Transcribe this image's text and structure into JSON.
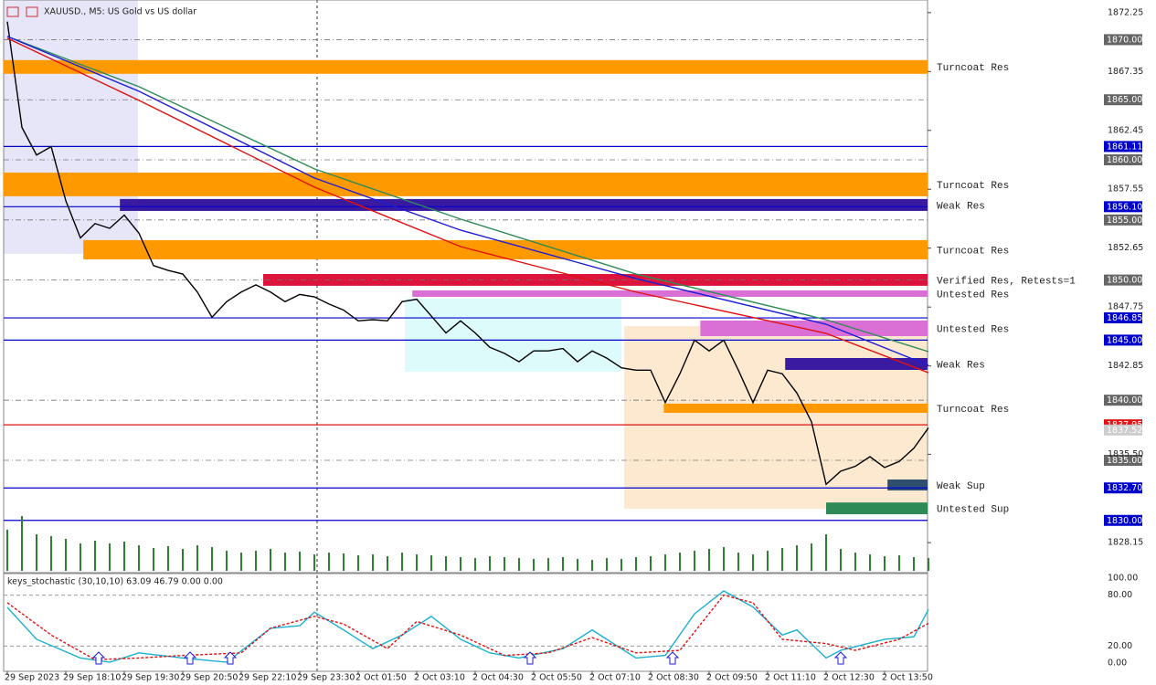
{
  "chart_data": [
    {
      "type": "line",
      "title": "XAUUSD., M5:  US Gold vs US dollar",
      "categories": [
        "29 Sep 2023",
        null,
        null,
        null,
        "29 Sep 18:10",
        null,
        null,
        null,
        "29 Sep 19:30",
        null,
        null,
        null,
        "29 Sep 20:50",
        null,
        null,
        null,
        "29 Sep 22:10",
        null,
        null,
        null,
        "29 Sep 23:30",
        null,
        null,
        null,
        "2 Oct 01:50",
        null,
        null,
        null,
        "2 Oct 03:10",
        null,
        null,
        null,
        "2 Oct 04:30",
        null,
        null,
        null,
        "2 Oct 05:50",
        null,
        null,
        null,
        "2 Oct 07:10",
        null,
        null,
        null,
        "2 Oct 08:30",
        null,
        null,
        null,
        "2 Oct 09:50",
        null,
        null,
        null,
        "2 Oct 11:10",
        null,
        null,
        null,
        "2 Oct 12:30",
        null,
        null,
        null,
        "2 Oct 13:50",
        null,
        null,
        null
      ],
      "series": [
        {
          "color": "#000000",
          "values": [
            1871.5,
            1862.7,
            1860.4,
            1861.1,
            1856.6,
            1853.5,
            1854.7,
            1854.3,
            1855.4,
            1853.9,
            1851.2,
            1850.8,
            1850.5,
            1849.0,
            1846.9,
            1848.2,
            1849.0,
            1849.6,
            1849.0,
            1848.2,
            1848.8,
            1848.6,
            1848.0,
            1847.5,
            1846.6,
            1846.7,
            1846.6,
            1848.2,
            1848.4,
            1847.0,
            1845.6,
            1846.6,
            1845.6,
            1844.4,
            1843.9,
            1843.2,
            1844.1,
            1844.1,
            1844.3,
            1843.2,
            1844.1,
            1843.5,
            1842.7,
            1842.5,
            1842.5,
            1839.8,
            1842.2,
            1845.0,
            1844.1,
            1845.0,
            1842.5,
            1839.8,
            1842.5,
            1842.2,
            1840.6,
            1838.2,
            1833.0,
            1834.1,
            1834.5,
            1835.3,
            1834.4,
            1834.9,
            1836.0,
            1837.7
          ]
        },
        {
          "color": "#2e8b57",
          "x": [
            0,
            9,
            21,
            31,
            43,
            56,
            63
          ],
          "values": [
            1870.27,
            1866.09,
            1859.25,
            1855.07,
            1850.5,
            1846.7,
            1844.04
          ]
        },
        {
          "color": "#1c1cd6",
          "x": [
            0,
            9,
            21,
            31,
            43,
            56,
            63
          ],
          "values": [
            1870.27,
            1865.71,
            1858.49,
            1854.15,
            1850.12,
            1846.32,
            1842.9
          ]
        },
        {
          "color": "#e01010",
          "x": [
            0,
            9,
            21,
            31,
            43,
            56,
            63
          ],
          "values": [
            1870.12,
            1864.95,
            1857.73,
            1852.78,
            1849.0,
            1845.56,
            1842.29
          ]
        }
      ],
      "ylim": [
        1825.65,
        1873.3
      ],
      "yticks": [
        1872.25,
        1867.35,
        1862.45,
        1857.55,
        1852.65,
        1847.75,
        1842.85,
        {
          "value": 1835.5,
          "label": "1835.50"
        },
        1828.15
      ],
      "levels": [
        {
          "value": 1870,
          "label": "1870.00",
          "color": "#777777",
          "dashed": true
        },
        {
          "value": 1865,
          "label": "1865.00",
          "color": "#777777",
          "dashed": true
        },
        {
          "value": 1861.11,
          "color": "#0000cc",
          "dashed": false
        },
        {
          "value": 1860,
          "label": "1860.00",
          "color": "#777777",
          "dashed": true
        },
        {
          "value": 1856.1,
          "label": "1856.10",
          "color": "#0000cc",
          "dashed": false
        },
        {
          "value": 1855,
          "label": "1855.00",
          "color": "#777777",
          "dashed": true
        },
        {
          "value": 1850,
          "label": "1850.00",
          "color": "#777777",
          "dashed": true
        },
        {
          "value": 1846.85,
          "color": "#0000cc",
          "dashed": false
        },
        {
          "value": 1845,
          "label": "1845.00",
          "color": "#0000cc",
          "dashed": false
        },
        {
          "value": 1840,
          "label": "1840.00",
          "color": "#777777",
          "dashed": true
        },
        {
          "value": 1837.95,
          "color": "#e01010",
          "dashed": false
        },
        {
          "value": 1835,
          "label": "1835.00",
          "color": "#777777",
          "dashed": true
        },
        {
          "value": 1832.7,
          "label": "1832.70",
          "color": "#0000cc",
          "dashed": false
        },
        {
          "value": 1830,
          "label": "1830.00",
          "color": "#0000cc",
          "dashed": false
        }
      ],
      "bid": 1837.52,
      "zones": [
        {
          "label": "Turncoat Res",
          "color": "#ff9900",
          "top": 1868.3,
          "bottom": 1867.16,
          "start": -0.25
        },
        {
          "label": "Turncoat Res",
          "color": "#ff9900",
          "top": 1858.94,
          "bottom": 1856.97,
          "start": -0.25
        },
        {
          "label": "Weak Res",
          "color": "#3a1aa0",
          "top": 1856.74,
          "bottom": 1855.75,
          "start": 7.7
        },
        {
          "label": "Turncoat Res",
          "color": "#ff9900",
          "top": 1853.32,
          "bottom": 1851.72,
          "start": 5.2
        },
        {
          "label": "Verified Res, Retests=1",
          "color": "#dc143c",
          "top": 1850.5,
          "bottom": 1849.52,
          "start": 17.5
        },
        {
          "label": "Untested Res",
          "color": "#da70d6",
          "top": 1849.14,
          "bottom": 1848.6,
          "start": 27.7
        },
        {
          "label": "Untested Res",
          "color": "#da70d6",
          "top": 1846.63,
          "bottom": 1845.33,
          "start": 47.4
        },
        {
          "label": "Weak Res",
          "color": "#3a1aa0",
          "top": 1843.51,
          "bottom": 1842.52,
          "start": 53.2
        },
        {
          "label": "Turncoat Res",
          "color": "#ff9900",
          "top": 1839.71,
          "bottom": 1838.95,
          "start": 44.9
        },
        {
          "label": "Weak Sup",
          "color": "#2f4f6f",
          "top": 1833.4,
          "bottom": 1832.49,
          "start": 60.2
        },
        {
          "label": "Untested Sup",
          "color": "#2e8b57",
          "top": 1831.49,
          "bottom": 1830.51,
          "start": 56
        }
      ]
    },
    {
      "type": "bar",
      "color": "#2e7d32",
      "values": [
        45,
        60,
        40,
        38,
        35,
        30,
        33,
        30,
        32,
        28,
        25,
        27,
        24,
        28,
        26,
        22,
        20,
        22,
        24,
        20,
        21,
        18,
        20,
        19,
        17,
        18,
        16,
        20,
        18,
        17,
        16,
        15,
        14,
        16,
        15,
        14,
        13,
        14,
        15,
        13,
        12,
        14,
        13,
        15,
        16,
        18,
        20,
        22,
        24,
        26,
        20,
        18,
        22,
        25,
        28,
        30,
        40,
        24,
        20,
        18,
        16,
        17,
        15,
        14
      ]
    },
    {
      "type": "line",
      "title": "keys_stochastic (30,10,10) 63.09 46.79 0.00 0.00",
      "ylim": [
        0,
        100
      ],
      "yticks": [
        {
          "value": 100,
          "label": "100.00"
        },
        {
          "value": 80,
          "label": "80.00"
        },
        {
          "value": 20,
          "label": "20.00"
        },
        {
          "value": 0,
          "label": "0.00"
        }
      ],
      "series": [
        {
          "color": "#1ab0d0",
          "dashed": false,
          "x": [
            0,
            2,
            5,
            7,
            9,
            12,
            15,
            18,
            20,
            21,
            23,
            25,
            27,
            29,
            31,
            33,
            35,
            38,
            40,
            43,
            45,
            47,
            49,
            51,
            53,
            54,
            56,
            57,
            60,
            62,
            63
          ],
          "values": [
            65.6,
            28,
            6,
            1,
            12,
            6,
            1,
            41,
            44,
            60,
            39,
            17,
            33,
            55,
            28,
            12,
            6,
            17,
            39,
            6,
            9,
            58,
            85,
            66,
            33,
            39,
            6,
            15,
            28,
            31,
            63.09
          ]
        },
        {
          "color": "#e01010",
          "dashed": true,
          "x": [
            0,
            3,
            6,
            9,
            12,
            16,
            18,
            21,
            23,
            26,
            28,
            31,
            34,
            37,
            40,
            43,
            46,
            49,
            51,
            53,
            56,
            58,
            61,
            63
          ],
          "values": [
            71,
            33,
            4,
            6,
            9,
            12,
            41,
            55,
            46,
            17,
            49,
            33,
            9,
            12,
            30,
            12,
            15,
            80,
            71,
            28,
            23,
            15,
            28,
            46.79
          ]
        }
      ],
      "signals": [
        6.25,
        12.5,
        15.25,
        35.75,
        45.5,
        57
      ]
    }
  ]
}
